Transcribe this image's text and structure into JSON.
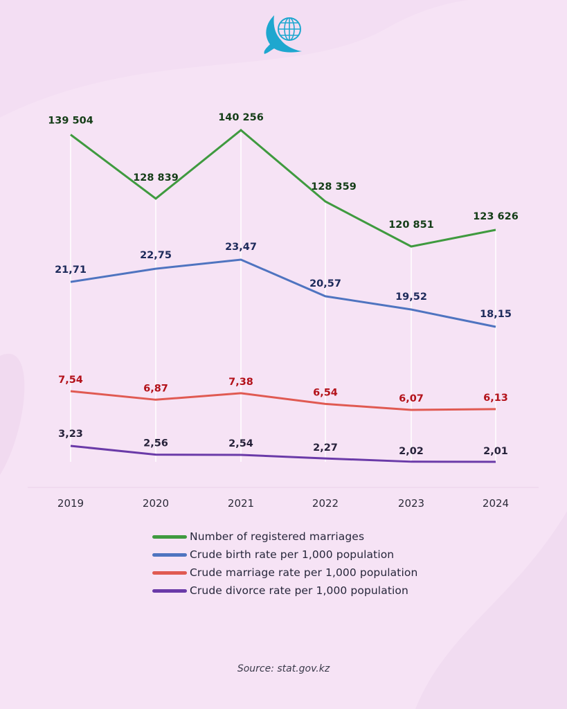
{
  "brand": {
    "logo_icon": "eagle-globe-icon",
    "logo_color": "#1ea7cf"
  },
  "background_color": "#f6e3f5",
  "chart_data": {
    "type": "line",
    "title": "",
    "xlabel": "",
    "ylabel": "",
    "categories": [
      "2019",
      "2020",
      "2021",
      "2022",
      "2023",
      "2024"
    ],
    "grid": "vertical lines at each year",
    "independent_scales": true,
    "series": [
      {
        "name": "Number of registered marriages",
        "color": "#3f9a3f",
        "label_color": "#143d17",
        "values": [
          139504,
          128839,
          140256,
          128359,
          120851,
          123626
        ],
        "labels": [
          "139 504",
          "128 839",
          "140 256",
          "128 359",
          "120 851",
          "123 626"
        ]
      },
      {
        "name": "Crude birth rate per 1,000 population",
        "color": "#4f74c0",
        "label_color": "#1c2a5a",
        "values": [
          21.71,
          22.75,
          23.47,
          20.57,
          19.52,
          18.15
        ],
        "labels": [
          "21,71",
          "22,75",
          "23,47",
          "20,57",
          "19,52",
          "18,15"
        ]
      },
      {
        "name": "Crude marriage rate per 1,000 population",
        "color": "#e05a52",
        "label_color": "#b3121a",
        "values": [
          7.54,
          6.87,
          7.38,
          6.54,
          6.07,
          6.13
        ],
        "labels": [
          "7,54",
          "6,87",
          "7,38",
          "6,54",
          "6,07",
          "6,13"
        ]
      },
      {
        "name": "Crude divorce rate per 1,000 population",
        "color": "#6a3aa8",
        "label_color": "#26223a",
        "values": [
          3.23,
          2.56,
          2.54,
          2.27,
          2.02,
          2.01
        ],
        "labels": [
          "3,23",
          "2,56",
          "2,54",
          "2,27",
          "2,02",
          "2,01"
        ]
      }
    ],
    "legend_position": "bottom-center"
  },
  "source": "Source: stat.gov.kz"
}
